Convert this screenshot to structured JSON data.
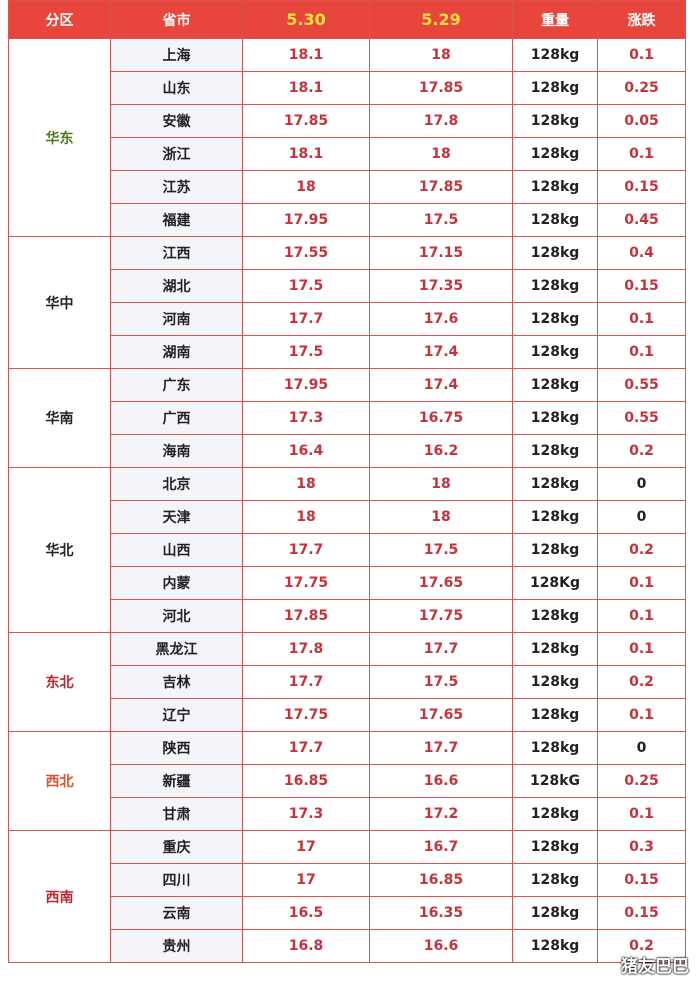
{
  "header": [
    "分区",
    "省市",
    "5.30",
    "5.29",
    "重量",
    "涨跌"
  ],
  "groups": [
    {
      "region": "华东",
      "color": "#4a7a1c",
      "rows": [
        [
          "上海",
          "18.1",
          "18",
          "128kg",
          "0.1"
        ],
        [
          "山东",
          "18.1",
          "17.85",
          "128kg",
          "0.25"
        ],
        [
          "安徽",
          "17.85",
          "17.8",
          "128kg",
          "0.05"
        ],
        [
          "浙江",
          "18.1",
          "18",
          "128kg",
          "0.1"
        ],
        [
          "江苏",
          "18",
          "17.85",
          "128kg",
          "0.15"
        ],
        [
          "福建",
          "17.95",
          "17.5",
          "128kg",
          "0.45"
        ]
      ]
    },
    {
      "region": "华中",
      "color": "#222222",
      "rows": [
        [
          "江西",
          "17.55",
          "17.15",
          "128kg",
          "0.4"
        ],
        [
          "湖北",
          "17.5",
          "17.35",
          "128kg",
          "0.15"
        ],
        [
          "河南",
          "17.7",
          "17.6",
          "128kg",
          "0.1"
        ],
        [
          "湖南",
          "17.5",
          "17.4",
          "128kg",
          "0.1"
        ]
      ]
    },
    {
      "region": "华南",
      "color": "#222222",
      "rows": [
        [
          "广东",
          "17.95",
          "17.4",
          "128kg",
          "0.55"
        ],
        [
          "广西",
          "17.3",
          "16.75",
          "128kg",
          "0.55"
        ],
        [
          "海南",
          "16.4",
          "16.2",
          "128kg",
          "0.2"
        ]
      ]
    },
    {
      "region": "华北",
      "color": "#222222",
      "rows": [
        [
          "北京",
          "18",
          "18",
          "128kg",
          "0"
        ],
        [
          "天津",
          "18",
          "18",
          "128kg",
          "0"
        ],
        [
          "山西",
          "17.7",
          "17.5",
          "128kg",
          "0.2"
        ],
        [
          "内蒙",
          "17.75",
          "17.65",
          "128Kg",
          "0.1"
        ],
        [
          "河北",
          "17.85",
          "17.75",
          "128kg",
          "0.1"
        ]
      ]
    },
    {
      "region": "东北",
      "color": "#c0262d",
      "rows": [
        [
          "黑龙江",
          "17.8",
          "17.7",
          "128kg",
          "0.1"
        ],
        [
          "吉林",
          "17.7",
          "17.5",
          "128kg",
          "0.2"
        ],
        [
          "辽宁",
          "17.75",
          "17.65",
          "128kg",
          "0.1"
        ]
      ]
    },
    {
      "region": "西北",
      "color": "#e0502a",
      "rows": [
        [
          "陕西",
          "17.7",
          "17.7",
          "128kg",
          "0"
        ],
        [
          "新疆",
          "16.85",
          "16.6",
          "128kG",
          "0.25"
        ],
        [
          "甘肃",
          "17.3",
          "17.2",
          "128kg",
          "0.1"
        ]
      ]
    },
    {
      "region": "西南",
      "color": "#c0262d",
      "rows": [
        [
          "重庆",
          "17",
          "16.7",
          "128kg",
          "0.3"
        ],
        [
          "四川",
          "17",
          "16.85",
          "128kg",
          "0.15"
        ],
        [
          "云南",
          "16.5",
          "16.35",
          "128kg",
          "0.15"
        ],
        [
          "贵州",
          "16.8",
          "16.6",
          "128kg",
          "0.2"
        ]
      ]
    }
  ],
  "watermark": "猪友巴巴"
}
